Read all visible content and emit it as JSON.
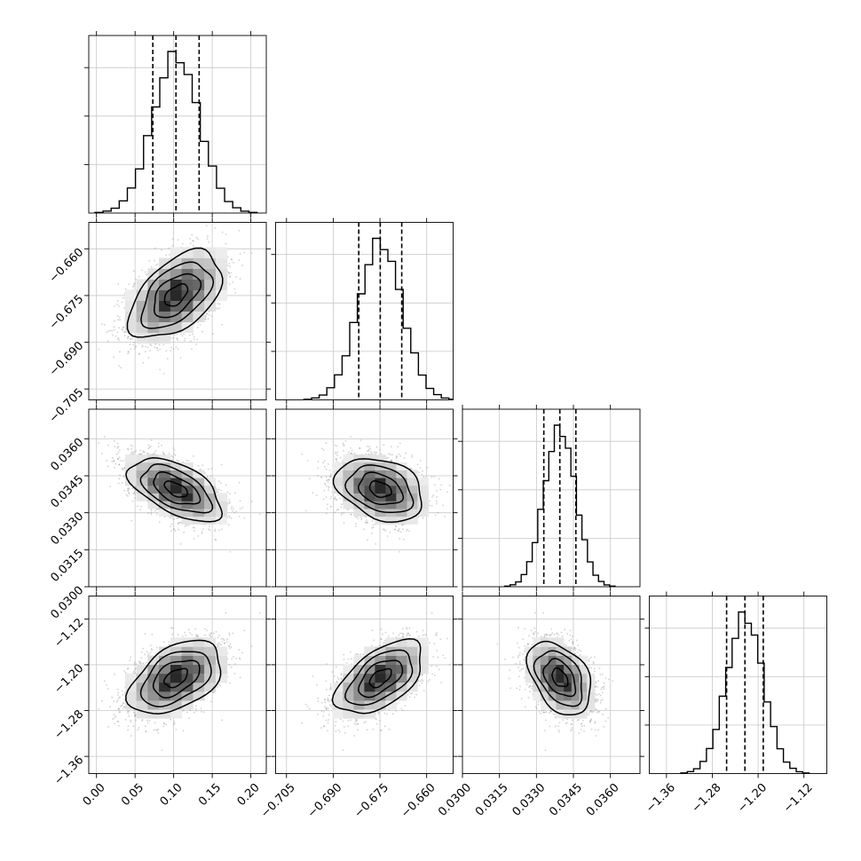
{
  "chart_data": {
    "type": "corner",
    "description_of_marks": "Corner plot of 4 parameters: 1D histograms on the diagonal with 16/50/84 percentile dashed lines; 2D density (grey scatter, shaded 2D histogram, contours) below the diagonal.",
    "title": "",
    "grid": true,
    "parameters": [
      {
        "name": "",
        "range": [
          -0.01,
          0.22
        ],
        "ticks": [
          "0.00",
          "0.05",
          "0.10",
          "0.15",
          "0.20"
        ],
        "tick_values": [
          0.0,
          0.05,
          0.1,
          0.15,
          0.2
        ],
        "mean": 0.103,
        "sd": 0.03,
        "quantiles": [
          0.073,
          0.103,
          0.133
        ]
      },
      {
        "name": "",
        "range": [
          -0.7085,
          -0.6515
        ],
        "ticks": [
          "−0.705",
          "−0.690",
          "−0.675",
          "−0.660"
        ],
        "tick_values": [
          -0.705,
          -0.69,
          -0.675,
          -0.66
        ],
        "mean": -0.6749,
        "sd": 0.007,
        "quantiles": [
          -0.6818,
          -0.6749,
          -0.668
        ]
      },
      {
        "name": "",
        "range": [
          0.03,
          0.0372
        ],
        "ticks": [
          "0.0300",
          "0.0315",
          "0.0330",
          "0.0345",
          "0.0360"
        ],
        "tick_values": [
          0.03,
          0.0315,
          0.033,
          0.0345,
          0.036
        ],
        "mean": 0.03395,
        "sd": 0.00064,
        "quantiles": [
          0.0333,
          0.03395,
          0.0346
        ]
      },
      {
        "name": "",
        "range": [
          -1.39,
          -1.08
        ],
        "ticks": [
          "−1.36",
          "−1.28",
          "−1.20",
          "−1.12"
        ],
        "tick_values": [
          -1.36,
          -1.28,
          -1.2,
          -1.12
        ],
        "mean": -1.223,
        "sd": 0.032,
        "quantiles": [
          -1.255,
          -1.223,
          -1.191
        ]
      }
    ],
    "correlations": [
      [
        1.0,
        0.5,
        -0.55,
        0.45
      ],
      [
        0.5,
        1.0,
        -0.3,
        0.55
      ],
      [
        -0.55,
        -0.3,
        1.0,
        -0.4
      ],
      [
        0.45,
        0.55,
        -0.4,
        1.0
      ]
    ],
    "histogram_bins": 20,
    "contour_levels_sigma": [
      0.5,
      1.0,
      1.5,
      2.0
    ],
    "colors": {
      "scatter": "#9a9a9a",
      "contour": "#000000",
      "grid": "#c8c8c8",
      "hist_line": "#000000"
    }
  }
}
